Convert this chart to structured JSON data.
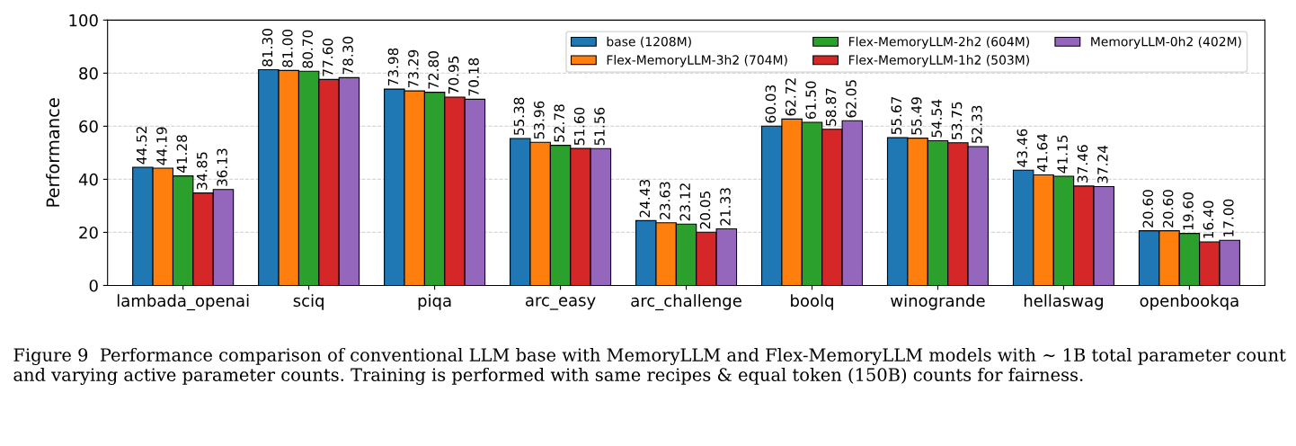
{
  "chart_data": {
    "type": "bar",
    "ylabel": "Performance",
    "categories": [
      "lambada_openai",
      "sciq",
      "piqa",
      "arc_easy",
      "arc_challenge",
      "boolq",
      "winogrande",
      "hellaswag",
      "openbookqa"
    ],
    "series": [
      {
        "name": "base (1208M)",
        "color": "#1f77b4",
        "values": [
          44.52,
          81.3,
          73.98,
          55.38,
          24.43,
          60.03,
          55.67,
          43.46,
          20.6
        ],
        "value_labels": [
          "44.52",
          "81.30",
          "73.98",
          "55.38",
          "24.43",
          "60.03",
          "55.67",
          "43.46",
          "20.60"
        ]
      },
      {
        "name": "Flex-MemoryLLM-3h2 (704M)",
        "color": "#ff7f0e",
        "values": [
          44.19,
          81.0,
          73.29,
          53.96,
          23.63,
          62.72,
          55.49,
          41.64,
          20.6
        ],
        "value_labels": [
          "44.19",
          "81.00",
          "73.29",
          "53.96",
          "23.63",
          "62.72",
          "55.49",
          "41.64",
          "20.60"
        ]
      },
      {
        "name": "Flex-MemoryLLM-2h2 (604M)",
        "color": "#2ca02c",
        "values": [
          41.28,
          80.7,
          72.8,
          52.78,
          23.12,
          61.5,
          54.54,
          41.15,
          19.6
        ],
        "value_labels": [
          "41.28",
          "80.70",
          "72.80",
          "52.78",
          "23.12",
          "61.50",
          "54.54",
          "41.15",
          "19.60"
        ]
      },
      {
        "name": "Flex-MemoryLLM-1h2 (503M)",
        "color": "#d62728",
        "values": [
          34.85,
          77.6,
          70.95,
          51.6,
          20.05,
          58.87,
          53.75,
          37.46,
          16.4
        ],
        "value_labels": [
          "34.85",
          "77.60",
          "70.95",
          "51.60",
          "20.05",
          "58.87",
          "53.75",
          "37.46",
          "16.40"
        ]
      },
      {
        "name": "MemoryLLM-0h2 (402M)",
        "color": "#9467bd",
        "values": [
          36.13,
          78.3,
          70.18,
          51.56,
          21.33,
          62.05,
          52.33,
          37.24,
          17.0
        ],
        "value_labels": [
          "36.13",
          "78.30",
          "70.18",
          "51.56",
          "21.33",
          "62.05",
          "52.33",
          "37.24",
          "17.00"
        ]
      }
    ],
    "ylim": [
      0,
      100
    ],
    "yticks": [
      0,
      20,
      40,
      60,
      80,
      100
    ],
    "grid": "y",
    "legend": "top right",
    "annotations": [
      "Figure 9  Performance comparison of conventional LLM base with MemoryLLM and Flex-MemoryLLM models with ∼ 1B total parameter count and varying active parameter counts. Training is performed with same recipes & equal token (150B) counts for fairness."
    ]
  }
}
